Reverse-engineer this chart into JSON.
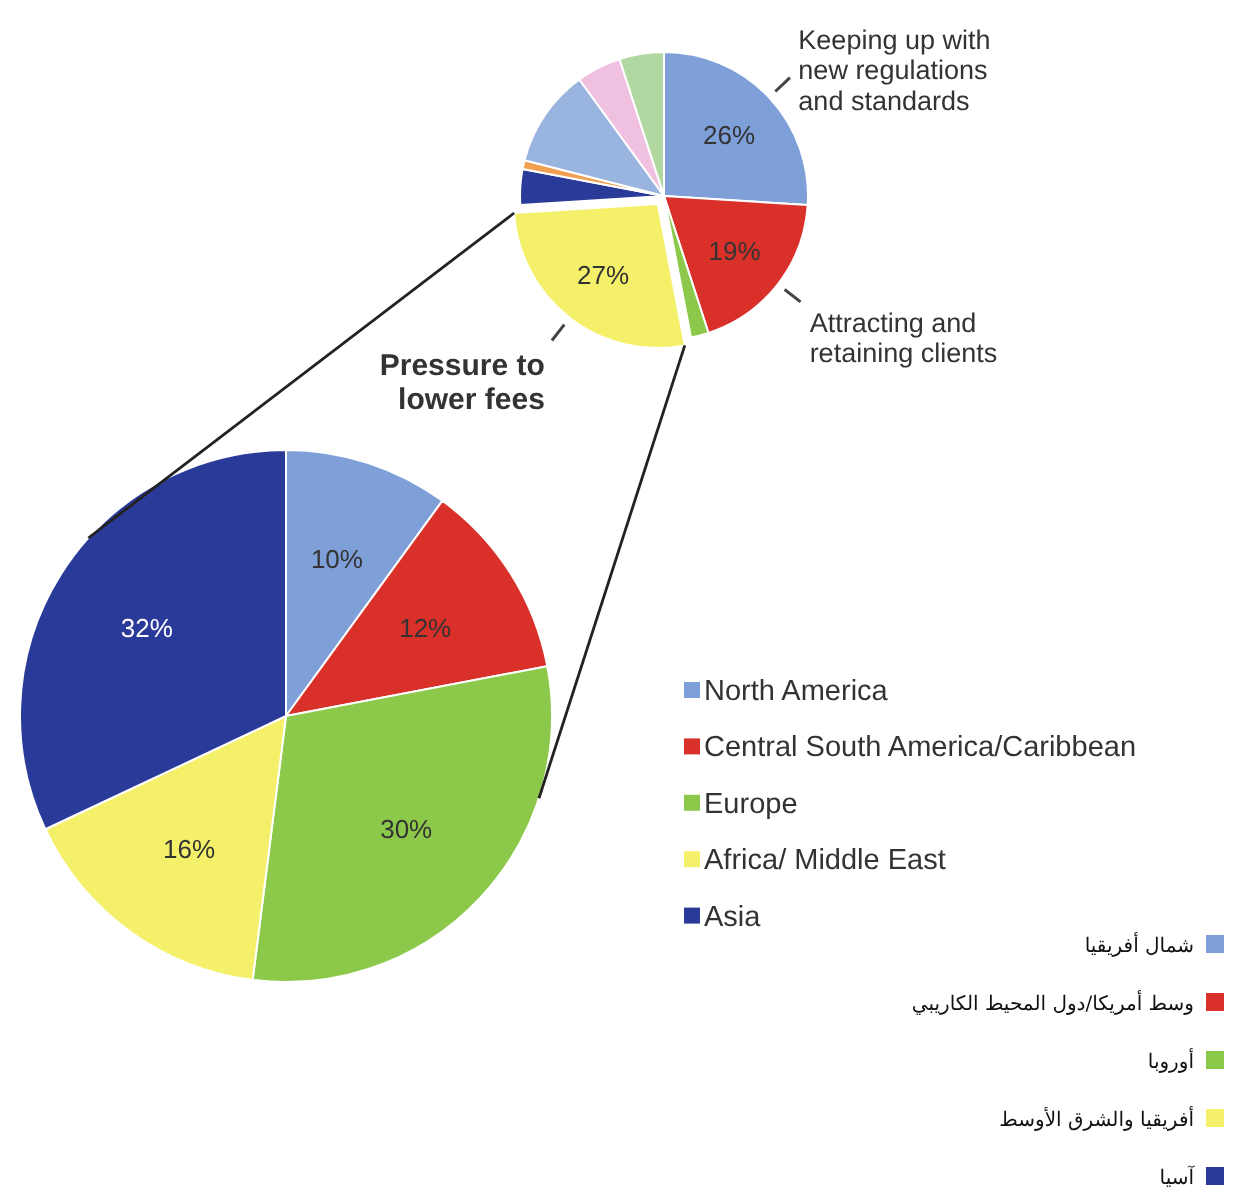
{
  "chart_data": [
    {
      "type": "pie",
      "categories": [
        "Keeping up with new regulations and standards",
        "Attracting and retaining clients",
        null,
        "Pressure to lower fees",
        null,
        null,
        null,
        null,
        null
      ],
      "values": [
        26,
        19,
        2,
        27,
        4,
        1,
        11,
        5,
        5
      ],
      "value_labels": [
        "26%",
        "19%",
        null,
        "27%",
        null,
        null,
        null,
        null,
        null
      ],
      "colors": [
        "#7f9fd8",
        "#d9302a",
        "#8cc94a",
        "#f5f06a",
        "#2a3a98",
        "#f0a050",
        "#9ab4e0",
        "#f0c0e0",
        "#b0d8a0"
      ]
    },
    {
      "type": "pie",
      "categories": [
        "North America",
        "Central South America/Caribbean",
        "Europe",
        "Africa/ Middle East",
        "Asia"
      ],
      "values": [
        10,
        12,
        30,
        16,
        32
      ],
      "value_labels": [
        "10%",
        "12%",
        "30%",
        "16%",
        "32%"
      ],
      "colors": [
        "#7f9fd8",
        "#d9302a",
        "#8cc94a",
        "#f5f06a",
        "#2a3a98"
      ],
      "legend": "right",
      "annotations": [
        "شمال أفريقيا",
        "وسط أمريكا/دول المحيط الكاريبي",
        "أوروبا",
        "أفريقيا والشرق الأوسط",
        "آسيا"
      ]
    }
  ]
}
